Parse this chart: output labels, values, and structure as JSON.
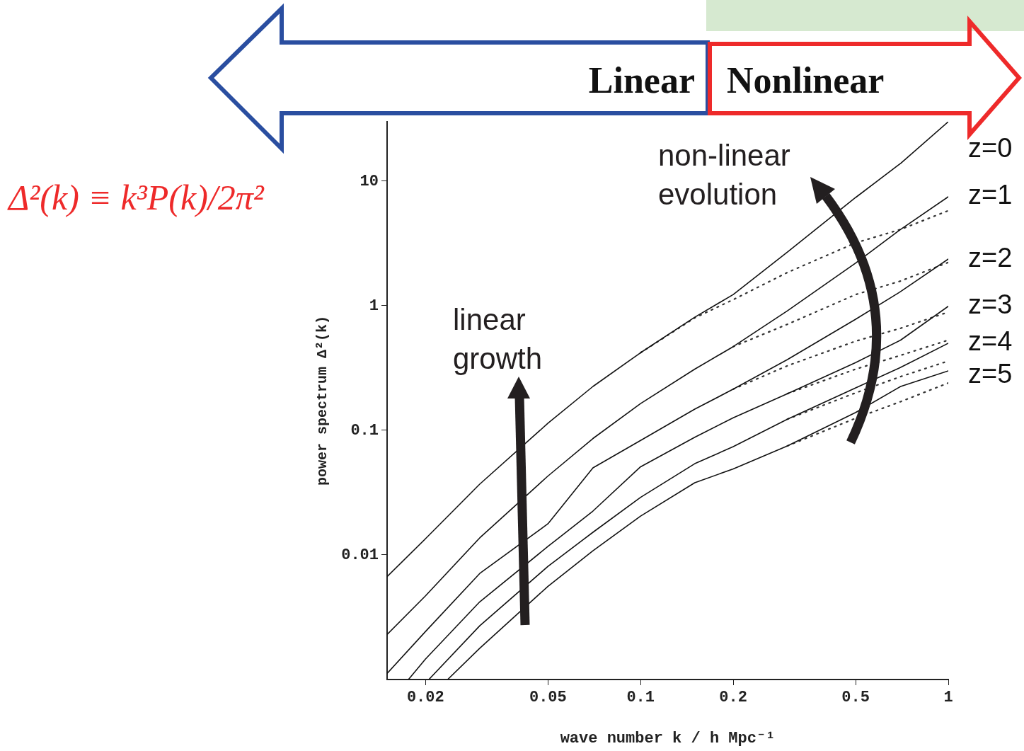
{
  "chart_data": {
    "type": "line",
    "xlabel": "wave number k / h Mpc⁻¹",
    "ylabel": "power spectrum Δ²(k)",
    "log": "xy",
    "marker": "none",
    "xlim": [
      0.015,
      1
    ],
    "ylim": [
      0.001,
      30
    ],
    "xticks": [
      0.02,
      0.05,
      0.1,
      0.2,
      0.5,
      1
    ],
    "yticks": [
      0.01,
      0.1,
      1,
      10
    ],
    "annotations": [
      "Linear",
      "Nonlinear",
      "Δ²(k) ≡ k³P(k)/2π²",
      "linear growth",
      "non-linear evolution"
    ],
    "series": [
      {
        "name": "z=0",
        "color": "#111111",
        "x": [
          0.015,
          0.02,
          0.03,
          0.05,
          0.07,
          0.1,
          0.15,
          0.2,
          0.3,
          0.5,
          0.7,
          1
        ],
        "values": [
          0.0067,
          0.0135,
          0.037,
          0.114,
          0.225,
          0.42,
          0.81,
          1.23,
          2.7,
          7.4,
          13.9,
          30
        ]
      },
      {
        "name": "z=1",
        "color": "#111111",
        "x": [
          0.015,
          0.02,
          0.03,
          0.05,
          0.07,
          0.1,
          0.15,
          0.2,
          0.3,
          0.5,
          0.7,
          1
        ],
        "values": [
          0.0023,
          0.0047,
          0.0137,
          0.043,
          0.086,
          0.164,
          0.31,
          0.47,
          0.91,
          2.2,
          4.1,
          7.5
        ]
      },
      {
        "name": "z=2",
        "color": "#111111",
        "x": [
          0.015,
          0.02,
          0.03,
          0.05,
          0.07,
          0.1,
          0.15,
          0.2,
          0.3,
          0.5,
          0.7,
          1
        ],
        "values": [
          0.00112,
          0.00243,
          0.0071,
          0.0178,
          0.05,
          0.083,
          0.148,
          0.214,
          0.37,
          0.78,
          1.3,
          2.37
        ]
      },
      {
        "name": "z=3",
        "color": "#111111",
        "x": [
          0.0176,
          0.02,
          0.03,
          0.05,
          0.07,
          0.1,
          0.15,
          0.2,
          0.3,
          0.5,
          0.7,
          1
        ],
        "values": [
          0.001,
          0.00146,
          0.0042,
          0.0117,
          0.0225,
          0.051,
          0.088,
          0.126,
          0.197,
          0.35,
          0.53,
          0.99
        ]
      },
      {
        "name": "z=4",
        "color": "#111111",
        "x": [
          0.0205,
          0.03,
          0.05,
          0.07,
          0.1,
          0.15,
          0.2,
          0.3,
          0.5,
          0.7,
          1
        ],
        "values": [
          0.001,
          0.0027,
          0.0081,
          0.0152,
          0.029,
          0.054,
          0.074,
          0.123,
          0.219,
          0.32,
          0.5
        ]
      },
      {
        "name": "z=5",
        "color": "#111111",
        "x": [
          0.0236,
          0.03,
          0.05,
          0.07,
          0.1,
          0.15,
          0.2,
          0.3,
          0.5,
          0.7,
          1
        ],
        "values": [
          0.001,
          0.00178,
          0.0056,
          0.0108,
          0.0205,
          0.038,
          0.049,
          0.075,
          0.139,
          0.225,
          0.3
        ]
      },
      {
        "color": "#333333",
        "line_style": "dotted",
        "x": [
          0.1,
          0.15,
          0.2,
          0.3,
          0.5,
          0.7,
          1
        ],
        "values": [
          0.42,
          0.8,
          1.12,
          1.85,
          3.2,
          4.1,
          5.8
        ]
      },
      {
        "color": "#333333",
        "line_style": "dotted",
        "x": [
          0.2,
          0.3,
          0.5,
          0.7,
          1
        ],
        "values": [
          0.47,
          0.71,
          1.23,
          1.58,
          2.23
        ]
      },
      {
        "color": "#333333",
        "line_style": "dotted",
        "x": [
          0.2,
          0.3,
          0.5,
          0.7,
          1
        ],
        "values": [
          0.214,
          0.33,
          0.52,
          0.66,
          0.89
        ]
      },
      {
        "color": "#333333",
        "line_style": "dotted",
        "x": [
          0.3,
          0.5,
          0.7,
          1
        ],
        "values": [
          0.197,
          0.31,
          0.4,
          0.53
        ]
      },
      {
        "color": "#333333",
        "line_style": "dotted",
        "x": [
          0.3,
          0.5,
          0.7,
          1
        ],
        "values": [
          0.123,
          0.2,
          0.27,
          0.36
        ]
      },
      {
        "color": "#333333",
        "line_style": "dotted",
        "x": [
          0.3,
          0.5,
          0.7,
          1
        ],
        "values": [
          0.075,
          0.125,
          0.17,
          0.24
        ]
      }
    ]
  }
}
